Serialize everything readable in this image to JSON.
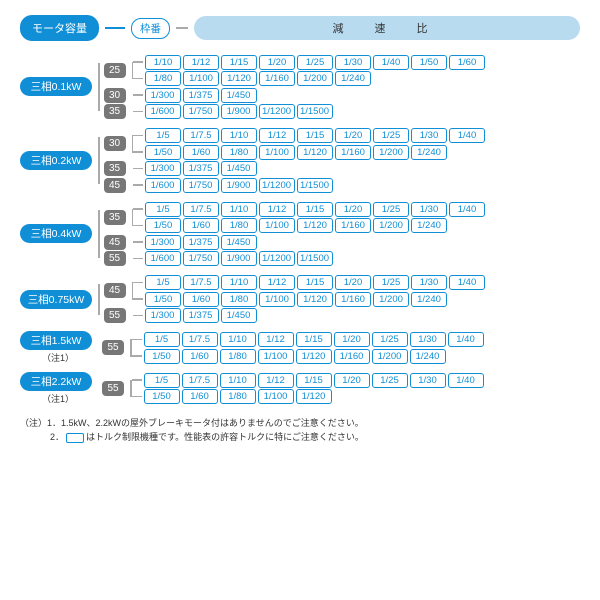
{
  "header": {
    "motor_cap": "モータ容量",
    "frame_no": "枠番",
    "ratio_title": "減 速 比"
  },
  "footer": {
    "note1_prefix": "（注）1．",
    "note1": "1.5kW、2.2kWの屋外ブレーキモータ付はありませんのでご注意ください。",
    "note2_prefix": "2．",
    "note2_a": "はトルク制限機種です。性能表の許容トルクに特にご注意ください。"
  },
  "note_label": "（注1）",
  "colors": {
    "accent": "#118fd6",
    "grey": "#777"
  },
  "groups": [
    {
      "motor": "三相0.1kW",
      "note1": false,
      "frames": [
        {
          "no": "25",
          "rows": [
            {
              "r": [
                "1/10",
                "1/12",
                "1/15",
                "1/20",
                "1/25",
                "1/30",
                "1/40",
                "1/50",
                "1/60"
              ],
              "hl": []
            },
            {
              "r": [
                "1/80",
                "1/100",
                "1/120",
                "1/160",
                "1/200",
                "1/240"
              ],
              "hl": []
            }
          ]
        },
        {
          "no": "30",
          "rows": [
            {
              "r": [
                "1/300",
                "1/375",
                "1/450"
              ],
              "hl": []
            }
          ]
        },
        {
          "no": "35",
          "rows": [
            {
              "r": [
                "1/600",
                "1/750",
                "1/900",
                "1/1200",
                "1/1500"
              ],
              "hl": [
                3,
                4
              ]
            }
          ]
        }
      ]
    },
    {
      "motor": "三相0.2kW",
      "note1": false,
      "frames": [
        {
          "no": "30",
          "rows": [
            {
              "r": [
                "1/5",
                "1/7.5",
                "1/10",
                "1/12",
                "1/15",
                "1/20",
                "1/25",
                "1/30",
                "1/40"
              ],
              "hl": []
            },
            {
              "r": [
                "1/50",
                "1/60",
                "1/80",
                "1/100",
                "1/120",
                "1/160",
                "1/200",
                "1/240"
              ],
              "hl": [
                7
              ]
            }
          ]
        },
        {
          "no": "35",
          "rows": [
            {
              "r": [
                "1/300",
                "1/375",
                "1/450"
              ],
              "hl": [
                2
              ]
            }
          ]
        },
        {
          "no": "45",
          "rows": [
            {
              "r": [
                "1/600",
                "1/750",
                "1/900",
                "1/1200",
                "1/1500"
              ],
              "hl": [
                2,
                3,
                4
              ]
            }
          ]
        }
      ]
    },
    {
      "motor": "三相0.4kW",
      "note1": false,
      "frames": [
        {
          "no": "35",
          "rows": [
            {
              "r": [
                "1/5",
                "1/7.5",
                "1/10",
                "1/12",
                "1/15",
                "1/20",
                "1/25",
                "1/30",
                "1/40"
              ],
              "hl": []
            },
            {
              "r": [
                "1/50",
                "1/60",
                "1/80",
                "1/100",
                "1/120",
                "1/160",
                "1/200",
                "1/240"
              ],
              "hl": [
                5,
                6,
                7
              ]
            }
          ]
        },
        {
          "no": "45",
          "rows": [
            {
              "r": [
                "1/300",
                "1/375",
                "1/450"
              ],
              "hl": []
            }
          ]
        },
        {
          "no": "55",
          "rows": [
            {
              "r": [
                "1/600",
                "1/750",
                "1/900",
                "1/1200",
                "1/1500"
              ],
              "hl": [
                0,
                1,
                2,
                3,
                4
              ]
            }
          ]
        }
      ]
    },
    {
      "motor": "三相0.75kW",
      "note1": false,
      "frames": [
        {
          "no": "45",
          "rows": [
            {
              "r": [
                "1/5",
                "1/7.5",
                "1/10",
                "1/12",
                "1/15",
                "1/20",
                "1/25",
                "1/30",
                "1/40"
              ],
              "hl": []
            },
            {
              "r": [
                "1/50",
                "1/60",
                "1/80",
                "1/100",
                "1/120",
                "1/160",
                "1/200",
                "1/240"
              ],
              "hl": [
                6,
                7
              ]
            }
          ]
        },
        {
          "no": "55",
          "rows": [
            {
              "r": [
                "1/300",
                "1/375",
                "1/450"
              ],
              "hl": [
                1,
                2
              ]
            }
          ]
        }
      ]
    },
    {
      "motor": "三相1.5kW",
      "note1": true,
      "frames": [
        {
          "no": "55",
          "rows": [
            {
              "r": [
                "1/5",
                "1/7.5",
                "1/10",
                "1/12",
                "1/15",
                "1/20",
                "1/25",
                "1/30",
                "1/40"
              ],
              "hl": []
            },
            {
              "r": [
                "1/50",
                "1/60",
                "1/80",
                "1/100",
                "1/120",
                "1/160",
                "1/200",
                "1/240"
              ],
              "hl": [
                5,
                6,
                7
              ]
            }
          ]
        }
      ]
    },
    {
      "motor": "三相2.2kW",
      "note1": true,
      "frames": [
        {
          "no": "55",
          "rows": [
            {
              "r": [
                "1/5",
                "1/7.5",
                "1/10",
                "1/12",
                "1/15",
                "1/20",
                "1/25",
                "1/30",
                "1/40"
              ],
              "hl": []
            },
            {
              "r": [
                "1/50",
                "1/60",
                "1/80",
                "1/100",
                "1/120"
              ],
              "hl": [
                3,
                4
              ]
            }
          ]
        }
      ]
    }
  ]
}
